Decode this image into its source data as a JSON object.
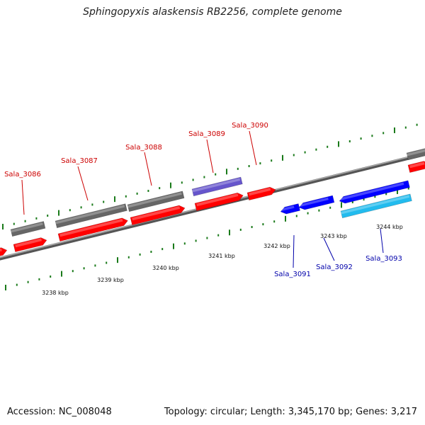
{
  "title": "Sphingopyxis alaskensis RB2256, complete genome",
  "footer": {
    "accession": "Accession: NC_008048",
    "topology": "Topology: circular; Length: 3,345,170 bp; Genes: 3,217"
  },
  "colors": {
    "forward_cds": "#ff0000",
    "reverse_cds": "#0000ff",
    "forward_gene": "#666666",
    "reverse_gene": "#6655cc",
    "rna_gene": "#22bbee",
    "label_forward": "#cc0000",
    "label_reverse": "#0000aa",
    "ticks": "#1a7a1a",
    "backbone": "#777777"
  },
  "scale_labels": [
    "3238 kbp",
    "3239 kbp",
    "3240 kbp",
    "3241 kbp",
    "3242 kbp",
    "3243 kbp",
    "3244 kbp"
  ],
  "gene_labels": [
    {
      "text": "Sala_3086",
      "strand": "forward"
    },
    {
      "text": "Sala_3087",
      "strand": "forward"
    },
    {
      "text": "Sala_3088",
      "strand": "forward"
    },
    {
      "text": "Sala_3089",
      "strand": "forward"
    },
    {
      "text": "Sala_3090",
      "strand": "forward"
    },
    {
      "text": "Sala_3091",
      "strand": "reverse"
    },
    {
      "text": "Sala_3092",
      "strand": "reverse"
    },
    {
      "text": "Sala_3093",
      "strand": "reverse"
    }
  ]
}
